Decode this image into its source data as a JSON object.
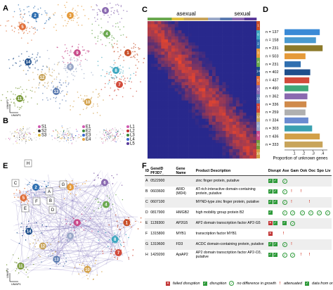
{
  "panel_labels": [
    "A",
    "B",
    "C",
    "D",
    "E",
    "F"
  ],
  "panel_a": {
    "clusters": [
      "0",
      "1",
      "2",
      "3",
      "4",
      "5",
      "6",
      "7",
      "8",
      "9",
      "10",
      "11",
      "12",
      "13",
      "14"
    ],
    "x_axis": "UMAP1",
    "y_axis": "UMAP2"
  },
  "panel_b": {
    "legends": [
      [
        "S1",
        "S2",
        "S3"
      ],
      [
        "E1",
        "E2",
        "E3",
        "E4"
      ],
      [
        "L1",
        "L2",
        "L3",
        "L4",
        "L5"
      ]
    ]
  },
  "panel_c": {
    "groups": [
      "asexual",
      "sexual"
    ],
    "cluster_order": [
      "1",
      "8",
      "2",
      "3",
      "4",
      "14",
      "5",
      "6",
      "13",
      "7",
      "12",
      "0",
      "9",
      "11",
      "10"
    ]
  },
  "chart_data": {
    "type": "bar",
    "orientation": "horizontal",
    "categories": [
      "n = 137",
      "n = 158",
      "n = 231",
      "n = 503",
      "n = 231",
      "n = 402",
      "n = 437",
      "n = 490",
      "n = 362",
      "n = 336",
      "n = 259",
      "n = 334",
      "n = 303",
      "n = 436",
      "n = 333"
    ],
    "values": [
      0.37,
      0.33,
      0.4,
      0.22,
      0.17,
      0.27,
      0.26,
      0.25,
      0.24,
      0.23,
      0.22,
      0.25,
      0.29,
      0.37,
      0.4
    ],
    "colors": [
      "#3a8ad6",
      "#4a9ad0",
      "#8c7a2a",
      "#e59a3a",
      "#2f6fb0",
      "#1f4f8c",
      "#d24a3a",
      "#3fa87a",
      "#8a6ab0",
      "#d08a4a",
      "#b0b0b0",
      "#6a8ad0",
      "#3aa0b0",
      "#d2a048",
      "#c8a45a"
    ],
    "xlim": [
      0,
      0.45
    ],
    "xticks": [
      {
        "value": 0.1,
        "label": ".1"
      },
      {
        "value": 0.2,
        "label": ".2"
      },
      {
        "value": 0.3,
        "label": ".3"
      },
      {
        "value": 0.4,
        "label": ".4"
      }
    ],
    "x_label": "Proportion of unknown genes"
  },
  "panel_e": {
    "clusters": [
      "0",
      "1",
      "2",
      "3",
      "4",
      "5",
      "6",
      "7",
      "8",
      "9",
      "10",
      "11",
      "12",
      "13",
      "14"
    ],
    "genes": [
      "A",
      "B",
      "C",
      "D",
      "E",
      "F",
      "G",
      "H"
    ],
    "x_axis": "UMAP1",
    "y_axis": "UMAP2"
  },
  "table": {
    "columns": [
      "ID",
      "GeneID PF3D7_",
      "Gene Name",
      "Product Description",
      "Disrupt",
      "Ase",
      "Gam",
      "Ook",
      "Ooc",
      "Spo",
      "Liv"
    ],
    "rows": [
      [
        "A",
        "0522900",
        null,
        "zinc finger protein, putative"
      ],
      [
        "B",
        "0603600",
        "ARID (MD4)",
        "AT-rich interactive domain-containing protein, putative"
      ],
      [
        "C",
        "0607100",
        null,
        "MYND-type zinc finger protein, putative"
      ],
      [
        "D",
        "0817900",
        "HMGB2",
        "high mobility group protein B2"
      ],
      [
        "E",
        "1139300",
        "AP2G5",
        "AP2 domain transcription factor AP2-G5"
      ],
      [
        "F",
        "1315800",
        "MYB1",
        "transcription factor MYB1"
      ],
      [
        "G",
        "1319600",
        "FD3",
        "ACDC domain-containing protein, putative"
      ],
      [
        "H",
        "1429200",
        "ApiAP2",
        "AP2 domain transcription factor AP2-O3, putative"
      ]
    ]
  },
  "legend": [
    "failed disruption",
    "disruption",
    "no difference in growth",
    "attenuated",
    "data from orthologs"
  ]
}
